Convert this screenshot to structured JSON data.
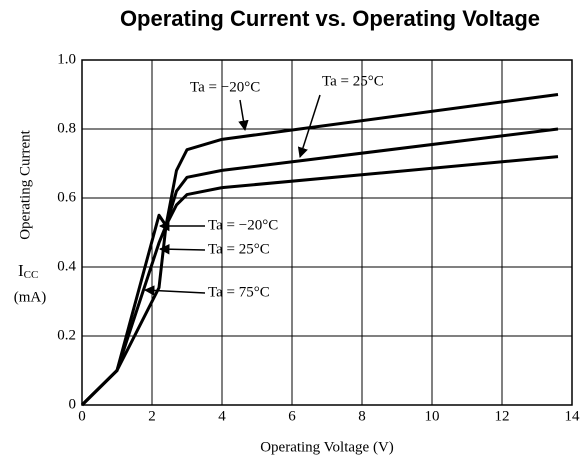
{
  "chart_data": {
    "type": "line",
    "title": "Operating Current vs. Operating Voltage",
    "x_label": "Operating Voltage (V)",
    "y_label": "Operating Current",
    "y_symbol": "I",
    "y_symbol_sub": "CC",
    "y_unit": "(mA)",
    "x": [
      0,
      1,
      2.2,
      2.4,
      2.7,
      3,
      4,
      13.6
    ],
    "series": [
      {
        "name": "Ta = −20°C",
        "color": "#000000",
        "values": [
          0,
          0.1,
          0.55,
          0.52,
          0.68,
          0.74,
          0.77,
          0.9
        ]
      },
      {
        "name": "Ta = 25°C",
        "color": "#000000",
        "values": [
          0,
          0.1,
          0.47,
          0.52,
          0.62,
          0.66,
          0.68,
          0.8
        ]
      },
      {
        "name": "Ta = 75°C",
        "color": "#000000",
        "values": [
          0,
          0.1,
          0.34,
          0.52,
          0.58,
          0.61,
          0.63,
          0.72
        ]
      }
    ],
    "annotations": [
      "Ta = −20°C",
      "Ta = 25°C",
      "Ta = −20°C",
      "Ta = 25°C",
      "Ta = 75°C"
    ],
    "xlim": [
      0,
      14
    ],
    "xticks": [
      0,
      2,
      4,
      6,
      8,
      10,
      12,
      14
    ],
    "ylim": [
      0,
      1
    ],
    "yticks": [
      0,
      0.2,
      0.4,
      0.6,
      0.8,
      {
        "value": 1,
        "label": "1.0"
      }
    ],
    "grid": true
  }
}
